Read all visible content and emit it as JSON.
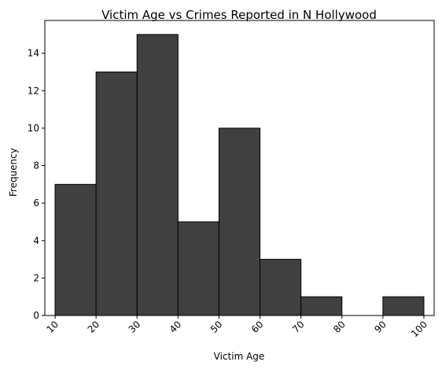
{
  "chart_data": {
    "type": "bar",
    "title": "Victim Age vs Crimes Reported in N Hollywood",
    "xlabel": "Victim Age",
    "ylabel": "Frequency",
    "bins": [
      {
        "start": 10,
        "end": 20,
        "count": 7
      },
      {
        "start": 20,
        "end": 30,
        "count": 13
      },
      {
        "start": 30,
        "end": 40,
        "count": 15
      },
      {
        "start": 40,
        "end": 50,
        "count": 5
      },
      {
        "start": 50,
        "end": 60,
        "count": 10
      },
      {
        "start": 60,
        "end": 70,
        "count": 3
      },
      {
        "start": 70,
        "end": 80,
        "count": 1
      },
      {
        "start": 80,
        "end": 90,
        "count": 0
      },
      {
        "start": 90,
        "end": 100,
        "count": 1
      }
    ],
    "xticks": [
      "10",
      "20",
      "30",
      "40",
      "50",
      "60",
      "70",
      "80",
      "90",
      "100"
    ],
    "yticks": [
      "0",
      "2",
      "4",
      "6",
      "8",
      "10",
      "12",
      "14"
    ],
    "xlim": [
      7.5,
      102.5
    ],
    "ylim": [
      0,
      15.75
    ],
    "grid": false,
    "bar_color": "#404040",
    "edge_color": "#000000"
  }
}
